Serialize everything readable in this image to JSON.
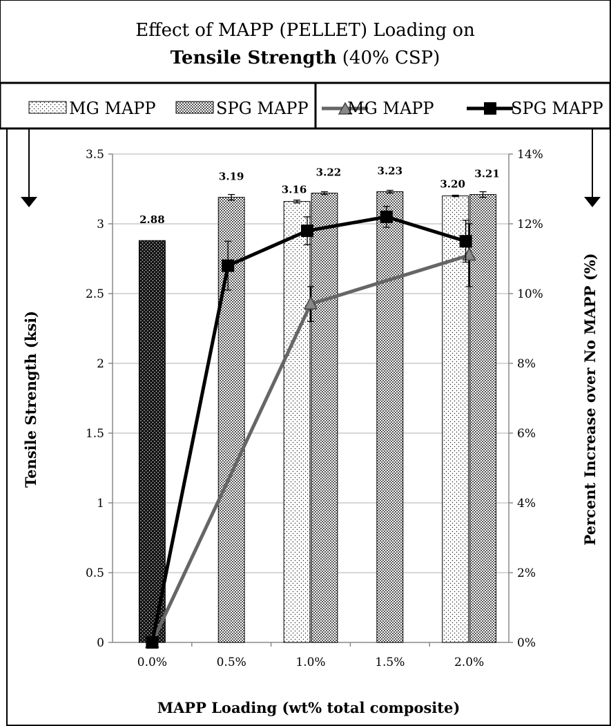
{
  "chart_data": {
    "type": "bar",
    "title": "Effect of MAPP (PELLET) Loading on",
    "title_bold": "Tensile Strength",
    "title_suffix": " (40% CSP)",
    "xlabel": "MAPP Loading (wt% total composite)",
    "ylabel": "Tensile Strength (ksi)",
    "y2label": "Percent Increase over No MAPP (%)",
    "categories": [
      "0.0%",
      "0.5%",
      "1.0%",
      "1.5%",
      "2.0%"
    ],
    "ylim": [
      0,
      3.5
    ],
    "y_ticks": [
      "0",
      "0.5",
      "1",
      "1.5",
      "2",
      "2.5",
      "3",
      "3.5"
    ],
    "y2lim": [
      0,
      14
    ],
    "y2_ticks": [
      "0%",
      "2%",
      "4%",
      "6%",
      "8%",
      "10%",
      "12%",
      "14%"
    ],
    "baseline": {
      "name": "",
      "category": "0.0%",
      "value": 2.88,
      "label": "2.88",
      "color": "#111111"
    },
    "bar_series": [
      {
        "name": "MG MAPP",
        "values": [
          null,
          null,
          3.16,
          null,
          3.2
        ],
        "labels": [
          "",
          "",
          "3.16",
          "",
          "3.20"
        ],
        "errors": [
          null,
          null,
          0.01,
          null,
          0.005
        ]
      },
      {
        "name": "SPG MAPP",
        "values": [
          null,
          3.19,
          3.22,
          3.23,
          3.21
        ],
        "labels": [
          "",
          "3.19",
          "3.22",
          "3.23",
          "3.21"
        ],
        "errors": [
          null,
          0.02,
          0.01,
          0.01,
          0.02
        ]
      }
    ],
    "line_series": [
      {
        "name": "MG MAPP",
        "axis": "right",
        "marker": "triangle",
        "color": "#666666",
        "values": [
          0,
          null,
          9.7,
          null,
          11.1
        ],
        "errors": [
          null,
          null,
          0.5,
          null,
          0.9
        ]
      },
      {
        "name": "SPG MAPP",
        "axis": "right",
        "marker": "square",
        "color": "#000000",
        "values": [
          0,
          10.8,
          11.8,
          12.2,
          11.5
        ],
        "errors": [
          null,
          0.7,
          0.4,
          0.3,
          0.6
        ]
      }
    ],
    "legend": {
      "placement": "top",
      "left": [
        "MG MAPP",
        "SPG MAPP"
      ],
      "right": [
        "MG MAPP",
        "SPG MAPP"
      ]
    },
    "grid": true
  }
}
